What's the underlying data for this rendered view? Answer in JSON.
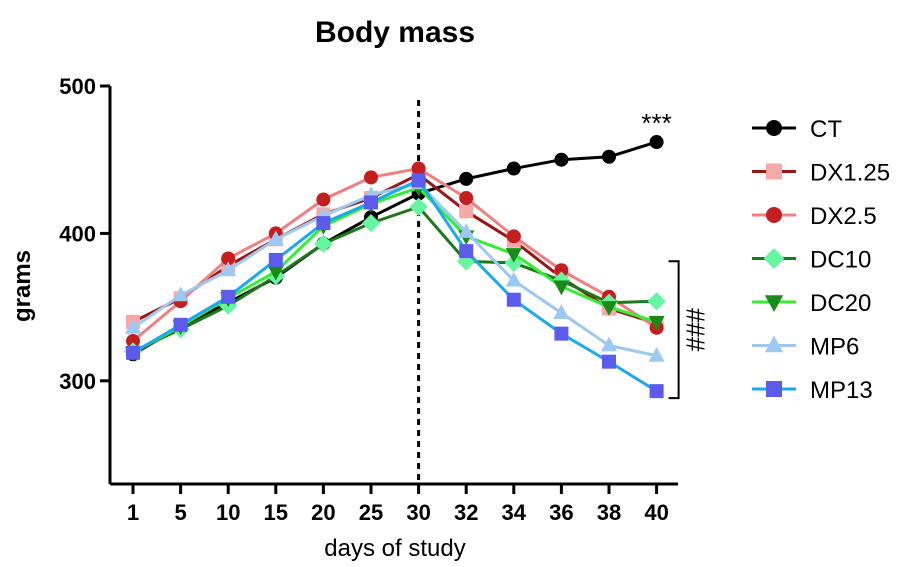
{
  "chart_data": {
    "type": "line",
    "title": "Body mass",
    "xlabel": "days of study",
    "ylabel": "grams",
    "categories": [
      "1",
      "5",
      "10",
      "15",
      "20",
      "25",
      "30",
      "32",
      "34",
      "36",
      "38",
      "40"
    ],
    "ylim": [
      230,
      500
    ],
    "yticks": [
      300,
      400,
      500
    ],
    "grid": false,
    "legend": "right",
    "vline_at_category": "30",
    "series": [
      {
        "name": "CT",
        "color": "#000000",
        "line_color": "#000000",
        "marker": "circle",
        "values": [
          318,
          337,
          353,
          370,
          393,
          411,
          427,
          437,
          444,
          450,
          452,
          462
        ]
      },
      {
        "name": "DX1.25",
        "color": "#f7a8a8",
        "line_color": "#9a1515",
        "marker": "square",
        "values": [
          340,
          356,
          378,
          396,
          413,
          424,
          440,
          415,
          395,
          370,
          349,
          339
        ]
      },
      {
        "name": "DX2.5",
        "color": "#c41e1e",
        "line_color": "#f08080",
        "marker": "circle",
        "values": [
          327,
          354,
          383,
          400,
          423,
          438,
          444,
          424,
          398,
          375,
          357,
          336
        ]
      },
      {
        "name": "DC10",
        "color": "#66f5a0",
        "line_color": "#1a7a1a",
        "marker": "diamond",
        "values": [
          320,
          335,
          351,
          371,
          393,
          407,
          418,
          381,
          380,
          368,
          353,
          354
        ]
      },
      {
        "name": "DC20",
        "color": "#1a8a1a",
        "line_color": "#33ee33",
        "marker": "triangle-down",
        "values": [
          319,
          337,
          356,
          374,
          405,
          420,
          431,
          398,
          386,
          364,
          350,
          340
        ]
      },
      {
        "name": "MP6",
        "color": "#9dc8f2",
        "line_color": "#9dc8f2",
        "marker": "triangle",
        "values": [
          336,
          358,
          375,
          396,
          412,
          426,
          434,
          401,
          368,
          346,
          324,
          317
        ]
      },
      {
        "name": "MP13",
        "color": "#5b5bee",
        "line_color": "#1aaaee",
        "marker": "square",
        "values": [
          319,
          338,
          357,
          382,
          407,
          421,
          436,
          388,
          355,
          332,
          313,
          293
        ]
      }
    ],
    "annotations": [
      {
        "text": "***",
        "near_series": "CT",
        "at_category": "40"
      },
      {
        "text": "###",
        "bracket_between_series": [
          "DC10",
          "MP13"
        ],
        "at_category": "40"
      }
    ]
  }
}
